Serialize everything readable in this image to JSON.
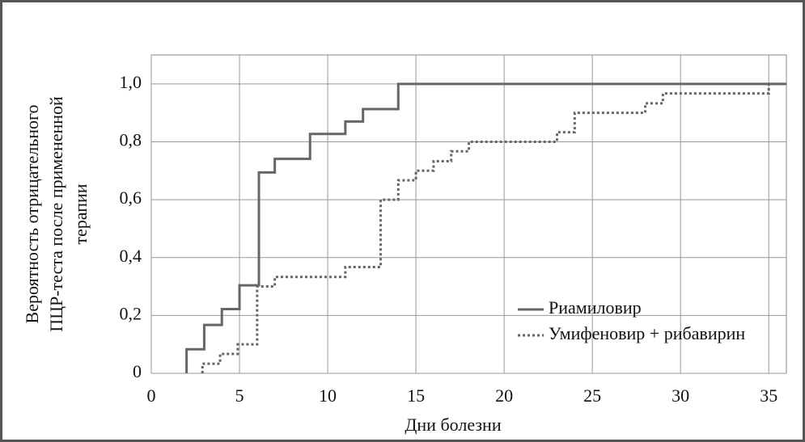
{
  "chart_data": {
    "type": "step",
    "y_label": [
      "Вероятность отрицательного",
      "ПЦР-теста после примененной",
      "терапии"
    ],
    "x_label": "Дни болезни",
    "xlim": [
      0,
      36
    ],
    "xticks": [
      0,
      5,
      10,
      15,
      20,
      25,
      30,
      35
    ],
    "ylim": [
      0,
      1.1
    ],
    "yticks": [
      0,
      {
        "value": 0.2,
        "label": "0,2"
      },
      {
        "value": 0.4,
        "label": "0,4"
      },
      {
        "value": 0.6,
        "label": "0,6"
      },
      {
        "value": 0.8,
        "label": "0,8"
      },
      {
        "value": 1.0,
        "label": "1,0"
      }
    ],
    "grid": true,
    "legend": "lower right",
    "series": [
      {
        "name": "Риамиловир",
        "color": "#666666",
        "dash": "solid",
        "x": [
          2,
          2,
          3,
          4,
          5,
          6.1,
          7,
          9,
          11,
          12,
          14,
          36
        ],
        "values": [
          0,
          0.083,
          0.167,
          0.222,
          0.304,
          0.694,
          0.741,
          0.827,
          0.87,
          0.913,
          1.0,
          1.0
        ]
      },
      {
        "name": "Умифеновир + рибавирин",
        "color": "#666666",
        "dash": "dotted",
        "x": [
          2.9,
          2.9,
          3.9,
          4.9,
          6,
          7,
          11,
          13,
          14,
          15,
          16,
          17,
          18,
          23,
          24,
          28,
          29,
          35,
          36
        ],
        "values": [
          0,
          0.033,
          0.067,
          0.1,
          0.3,
          0.333,
          0.367,
          0.6,
          0.667,
          0.7,
          0.733,
          0.767,
          0.8,
          0.833,
          0.9,
          0.933,
          0.967,
          1.0,
          1.0
        ]
      }
    ]
  }
}
